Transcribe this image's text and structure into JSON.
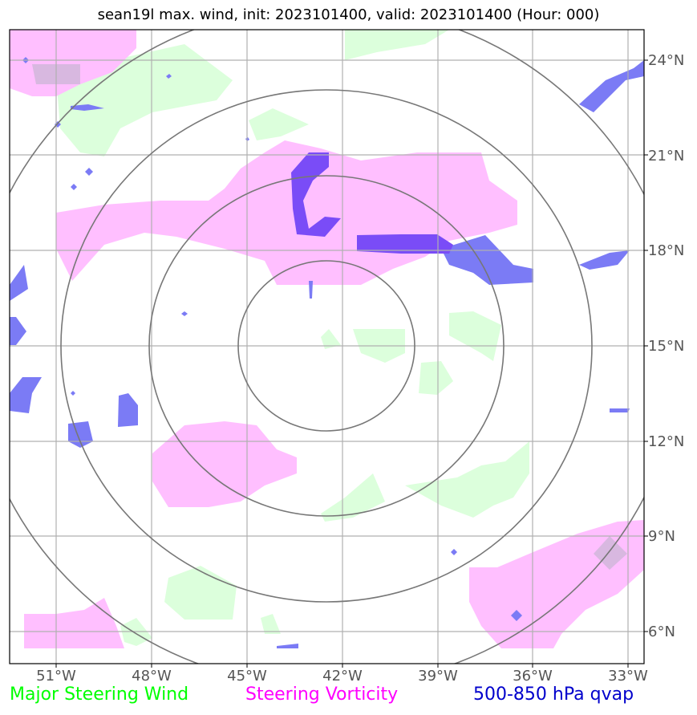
{
  "title": "sean19l max. wind, init: 2023101400, valid: 2023101400 (Hour: 000)",
  "map": {
    "lon_ticks": [
      "51°W",
      "48°W",
      "45°W",
      "42°W",
      "39°W",
      "36°W",
      "33°W"
    ],
    "lat_ticks": [
      "24°N",
      "21°N",
      "18°N",
      "15°N",
      "12°N",
      "9°N",
      "6°N"
    ],
    "center": {
      "lon": -42.5,
      "lat": 15.0
    }
  },
  "legend": {
    "wind": {
      "label": "Major Steering Wind",
      "color": "#00ff00"
    },
    "vorticity": {
      "label": "Steering Vorticity",
      "color": "#ff00ff"
    },
    "qvap": {
      "label": "500-850 hPa qvap",
      "color": "#0000cc"
    }
  },
  "colors": {
    "wind_fill": "#dcffdc",
    "vorticity_fill": "#ffbfff",
    "qvap_fill": "#7b7bf5",
    "qvap_dark": "#7a4cf7",
    "grid": "#b0b0b0",
    "rings": "#777777"
  }
}
